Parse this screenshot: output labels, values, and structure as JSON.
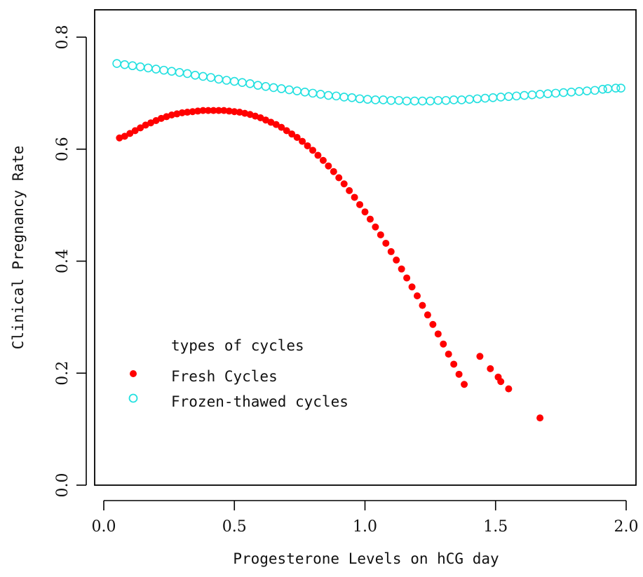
{
  "chart_data": {
    "type": "scatter",
    "title": "",
    "xlabel": "Progesterone Levels on hCG day",
    "ylabel": "Clinical Pregnancy Rate",
    "xlim": [
      0.0,
      2.0
    ],
    "ylim": [
      0.0,
      0.8
    ],
    "x_ticks": [
      0.0,
      0.5,
      1.0,
      1.5,
      2.0
    ],
    "x_tick_labels": [
      "0.0",
      "0.5",
      "1.0",
      "1.5",
      "2.0"
    ],
    "y_ticks": [
      0.0,
      0.2,
      0.4,
      0.6,
      0.8
    ],
    "y_tick_labels": [
      "0.0",
      "0.2",
      "0.4",
      "0.6",
      "0.8"
    ],
    "grid": false,
    "legend": {
      "title": "types of cycles",
      "position": "bottom-left",
      "entries": [
        "Fresh Cycles",
        "Frozen-thawed cycles"
      ]
    },
    "series": [
      {
        "name": "Fresh Cycles",
        "marker": "filled-circle",
        "color": "#ff0000",
        "points": [
          [
            0.06,
            0.62
          ],
          [
            0.08,
            0.623
          ],
          [
            0.1,
            0.628
          ],
          [
            0.12,
            0.633
          ],
          [
            0.14,
            0.638
          ],
          [
            0.16,
            0.643
          ],
          [
            0.18,
            0.647
          ],
          [
            0.2,
            0.651
          ],
          [
            0.22,
            0.655
          ],
          [
            0.24,
            0.658
          ],
          [
            0.26,
            0.661
          ],
          [
            0.28,
            0.663
          ],
          [
            0.3,
            0.665
          ],
          [
            0.32,
            0.666
          ],
          [
            0.34,
            0.667
          ],
          [
            0.36,
            0.668
          ],
          [
            0.38,
            0.669
          ],
          [
            0.4,
            0.669
          ],
          [
            0.42,
            0.669
          ],
          [
            0.44,
            0.669
          ],
          [
            0.46,
            0.669
          ],
          [
            0.48,
            0.668
          ],
          [
            0.5,
            0.667
          ],
          [
            0.52,
            0.666
          ],
          [
            0.54,
            0.664
          ],
          [
            0.56,
            0.662
          ],
          [
            0.58,
            0.659
          ],
          [
            0.6,
            0.656
          ],
          [
            0.62,
            0.652
          ],
          [
            0.64,
            0.648
          ],
          [
            0.66,
            0.644
          ],
          [
            0.68,
            0.639
          ],
          [
            0.7,
            0.633
          ],
          [
            0.72,
            0.627
          ],
          [
            0.74,
            0.621
          ],
          [
            0.76,
            0.614
          ],
          [
            0.78,
            0.606
          ],
          [
            0.8,
            0.598
          ],
          [
            0.82,
            0.589
          ],
          [
            0.84,
            0.58
          ],
          [
            0.86,
            0.57
          ],
          [
            0.88,
            0.56
          ],
          [
            0.9,
            0.549
          ],
          [
            0.92,
            0.538
          ],
          [
            0.94,
            0.526
          ],
          [
            0.96,
            0.514
          ],
          [
            0.98,
            0.501
          ],
          [
            1.0,
            0.488
          ],
          [
            1.02,
            0.475
          ],
          [
            1.04,
            0.461
          ],
          [
            1.06,
            0.447
          ],
          [
            1.08,
            0.432
          ],
          [
            1.1,
            0.417
          ],
          [
            1.12,
            0.402
          ],
          [
            1.14,
            0.386
          ],
          [
            1.16,
            0.37
          ],
          [
            1.18,
            0.354
          ],
          [
            1.2,
            0.338
          ],
          [
            1.22,
            0.321
          ],
          [
            1.24,
            0.304
          ],
          [
            1.26,
            0.287
          ],
          [
            1.28,
            0.27
          ],
          [
            1.3,
            0.252
          ],
          [
            1.32,
            0.234
          ],
          [
            1.34,
            0.216
          ],
          [
            1.36,
            0.198
          ],
          [
            1.38,
            0.18
          ],
          [
            1.44,
            0.23
          ],
          [
            1.48,
            0.208
          ],
          [
            1.51,
            0.193
          ],
          [
            1.52,
            0.185
          ],
          [
            1.55,
            0.172
          ],
          [
            1.67,
            0.12
          ]
        ]
      },
      {
        "name": "Frozen-thawed cycles",
        "marker": "open-circle",
        "color": "#22e0e0",
        "points": [
          [
            0.05,
            0.753
          ],
          [
            0.08,
            0.751
          ],
          [
            0.11,
            0.749
          ],
          [
            0.14,
            0.747
          ],
          [
            0.17,
            0.745
          ],
          [
            0.2,
            0.743
          ],
          [
            0.23,
            0.741
          ],
          [
            0.26,
            0.739
          ],
          [
            0.29,
            0.737
          ],
          [
            0.32,
            0.735
          ],
          [
            0.35,
            0.732
          ],
          [
            0.38,
            0.73
          ],
          [
            0.41,
            0.728
          ],
          [
            0.44,
            0.725
          ],
          [
            0.47,
            0.723
          ],
          [
            0.5,
            0.721
          ],
          [
            0.53,
            0.719
          ],
          [
            0.56,
            0.717
          ],
          [
            0.59,
            0.714
          ],
          [
            0.62,
            0.712
          ],
          [
            0.65,
            0.71
          ],
          [
            0.68,
            0.708
          ],
          [
            0.71,
            0.706
          ],
          [
            0.74,
            0.704
          ],
          [
            0.77,
            0.702
          ],
          [
            0.8,
            0.7
          ],
          [
            0.83,
            0.698
          ],
          [
            0.86,
            0.696
          ],
          [
            0.89,
            0.695
          ],
          [
            0.92,
            0.693
          ],
          [
            0.95,
            0.692
          ],
          [
            0.98,
            0.69
          ],
          [
            1.01,
            0.689
          ],
          [
            1.04,
            0.688
          ],
          [
            1.07,
            0.688
          ],
          [
            1.1,
            0.687
          ],
          [
            1.13,
            0.687
          ],
          [
            1.16,
            0.686
          ],
          [
            1.19,
            0.686
          ],
          [
            1.22,
            0.686
          ],
          [
            1.25,
            0.686
          ],
          [
            1.28,
            0.687
          ],
          [
            1.31,
            0.687
          ],
          [
            1.34,
            0.688
          ],
          [
            1.37,
            0.688
          ],
          [
            1.4,
            0.689
          ],
          [
            1.43,
            0.69
          ],
          [
            1.46,
            0.691
          ],
          [
            1.49,
            0.692
          ],
          [
            1.52,
            0.693
          ],
          [
            1.55,
            0.694
          ],
          [
            1.58,
            0.695
          ],
          [
            1.61,
            0.696
          ],
          [
            1.64,
            0.697
          ],
          [
            1.67,
            0.698
          ],
          [
            1.7,
            0.699
          ],
          [
            1.73,
            0.7
          ],
          [
            1.76,
            0.701
          ],
          [
            1.79,
            0.702
          ],
          [
            1.82,
            0.703
          ],
          [
            1.85,
            0.704
          ],
          [
            1.88,
            0.705
          ],
          [
            1.91,
            0.707
          ],
          [
            1.93,
            0.708
          ],
          [
            1.96,
            0.709
          ],
          [
            1.98,
            0.709
          ]
        ]
      }
    ]
  }
}
